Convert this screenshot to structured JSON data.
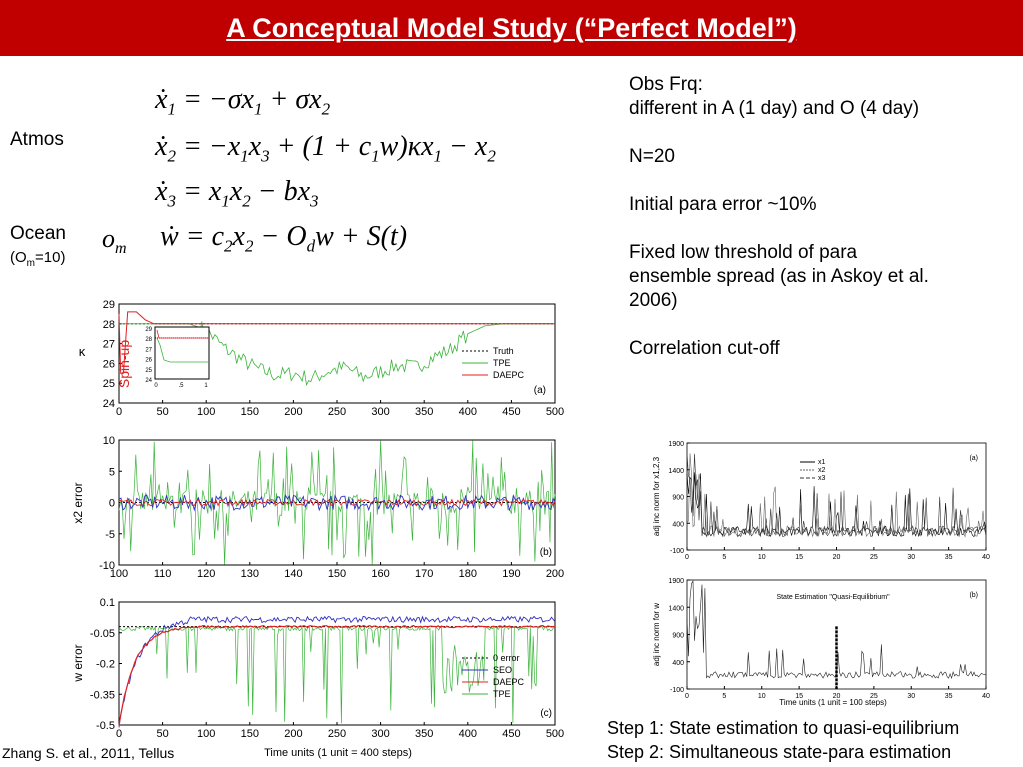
{
  "slide": {
    "title": "A Conceptual Model Study (“Perfect Model”)",
    "atmos_label": "Atmos",
    "ocean_label": "Ocean",
    "ocean_sub": "(Om=10)",
    "om_symbol": "om",
    "citation": "Zhang  S. et al., 2011, Tellus",
    "colors": {
      "title_bar": "#c00000",
      "title_text": "#ffffff"
    }
  },
  "equations": [
    "ẋ1 = −σx1 + σx2",
    "ẋ2 = −x1x3 + (1 + c1w)κx1 − x2",
    "ẋ3 = x1x2 − bx3",
    "ẇ = c2x2 − Odw + S(t)"
  ],
  "notes": {
    "obs_frq_title": "Obs Frq:",
    "obs_frq_detail": "different in A (1 day) and O (4 day)",
    "ensemble_size": "N=20",
    "initial_error": "Initial para error ~10%",
    "threshold_line1": "Fixed low threshold of para",
    "threshold_line2": "ensemble spread  (as in Askoy et al.",
    "threshold_line3": "2006)",
    "cutoff": "Correlation cut-off"
  },
  "steps": {
    "step1": "Step 1: State estimation to quasi-equilibrium",
    "step2": "Step 2: Simultaneous state-para estimation"
  },
  "chart_data": [
    {
      "type": "line",
      "panel": "(a)",
      "ylabel": "κ",
      "xlim": [
        0,
        500
      ],
      "ylim": [
        24,
        29
      ],
      "xticks": [
        "0",
        "50",
        "100",
        "150",
        "200",
        "250",
        "300",
        "350",
        "400",
        "450",
        "500"
      ],
      "yticks": [
        "24",
        "25",
        "26",
        "27",
        "28",
        "29"
      ],
      "annotation": "Spin-up",
      "legend": [
        "Truth",
        "TPE",
        "DAEPC"
      ],
      "legend_position": "right",
      "inset": {
        "xticks": [
          "0",
          ".5",
          "1"
        ],
        "yticks": [
          "24",
          "25",
          "26",
          "27",
          "28",
          "29"
        ]
      },
      "series": [
        {
          "name": "Truth",
          "color": "#000000",
          "x": [
            0,
            500
          ],
          "y": [
            28,
            28
          ]
        },
        {
          "name": "TPE",
          "color": "#3cb43c",
          "x": [
            0,
            20,
            40,
            60,
            80,
            100,
            120,
            140,
            160,
            180,
            200,
            220,
            240,
            260,
            280,
            300,
            320,
            340,
            360,
            380,
            400,
            420,
            440,
            460,
            480,
            500
          ],
          "y": [
            28,
            28,
            28,
            28,
            28,
            27.7,
            26.8,
            26.2,
            25.7,
            25.4,
            25.5,
            25.2,
            25.6,
            25.8,
            25.3,
            25.6,
            25.9,
            25.8,
            26.3,
            26.7,
            27.5,
            27.9,
            28,
            28,
            28,
            28
          ]
        },
        {
          "name": "DAEPC",
          "color": "#e02020",
          "x": [
            0,
            2,
            5,
            10,
            20,
            30,
            40,
            500
          ],
          "y": [
            28.5,
            25.5,
            25.5,
            28.6,
            28.6,
            28.2,
            28,
            28
          ]
        }
      ]
    },
    {
      "type": "line",
      "panel": "(b)",
      "ylabel": "x2 error",
      "xlim": [
        100,
        200
      ],
      "ylim": [
        -10,
        10
      ],
      "xticks": [
        "100",
        "110",
        "120",
        "130",
        "140",
        "150",
        "160",
        "170",
        "180",
        "190",
        "200"
      ],
      "yticks": [
        "-10",
        "-5",
        "0",
        "5",
        "10"
      ],
      "series": [
        {
          "name": "TPE",
          "color": "#3cb43c",
          "amplitude": 10
        },
        {
          "name": "SEO",
          "color": "#3030c0",
          "amplitude": 1.2
        },
        {
          "name": "DAEPC",
          "color": "#e02020",
          "amplitude": 0.5
        }
      ]
    },
    {
      "type": "line",
      "panel": "(c)",
      "ylabel": "w error",
      "xlabel": "Time units (1 unit = 400 steps)",
      "xlim": [
        0,
        500
      ],
      "ylim": [
        -0.5,
        0.1
      ],
      "xticks": [
        "0",
        "50",
        "100",
        "150",
        "200",
        "250",
        "300",
        "350",
        "400",
        "450",
        "500"
      ],
      "yticks": [
        "-0.5",
        "-0.35",
        "-0.2",
        "-0.05",
        "0.1"
      ],
      "legend": [
        "0 error",
        "SEO",
        "DAEPC",
        "TPE"
      ],
      "legend_position": "right",
      "series": [
        {
          "name": "0 error",
          "color": "#000000",
          "x": [
            0,
            500
          ],
          "y": [
            -0.02,
            -0.02
          ]
        },
        {
          "name": "SEO",
          "color": "#3030c0",
          "x": [
            0,
            15,
            30,
            50,
            80,
            500
          ],
          "y": [
            -0.5,
            -0.35,
            -0.15,
            -0.05,
            0.02,
            0.02
          ]
        },
        {
          "name": "DAEPC",
          "color": "#e02020",
          "x": [
            0,
            15,
            30,
            50,
            80,
            500
          ],
          "y": [
            -0.5,
            -0.3,
            -0.12,
            -0.03,
            -0.02,
            -0.02
          ]
        },
        {
          "name": "TPE",
          "color": "#3cb43c",
          "x": [
            0,
            500
          ],
          "y": [
            -0.02,
            -0.02
          ]
        }
      ]
    },
    {
      "type": "line",
      "panel": "(a)",
      "ylabel": "adj inc norm for x1,2,3",
      "xlim": [
        0,
        40
      ],
      "ylim": [
        -100,
        1900
      ],
      "xticks": [
        "0",
        "5",
        "10",
        "15",
        "20",
        "25",
        "30",
        "35",
        "40"
      ],
      "yticks": [
        "-100",
        "400",
        "900",
        "1400",
        "1900"
      ],
      "legend": [
        "x1",
        "x2",
        "x3"
      ],
      "legend_position": "top-right"
    },
    {
      "type": "line",
      "panel": "(b)",
      "ylabel": "adj inc norm for w",
      "xlabel": "Time units (1 unit = 100 steps)",
      "title": "State Estimation \"Quasi-Equilibrium\"",
      "xlim": [
        0,
        40
      ],
      "ylim": [
        -100,
        1900
      ],
      "xticks": [
        "0",
        "5",
        "10",
        "15",
        "20",
        "25",
        "30",
        "35",
        "40"
      ],
      "yticks": [
        "-100",
        "400",
        "900",
        "1400",
        "1900"
      ],
      "marker_x": 20
    }
  ]
}
